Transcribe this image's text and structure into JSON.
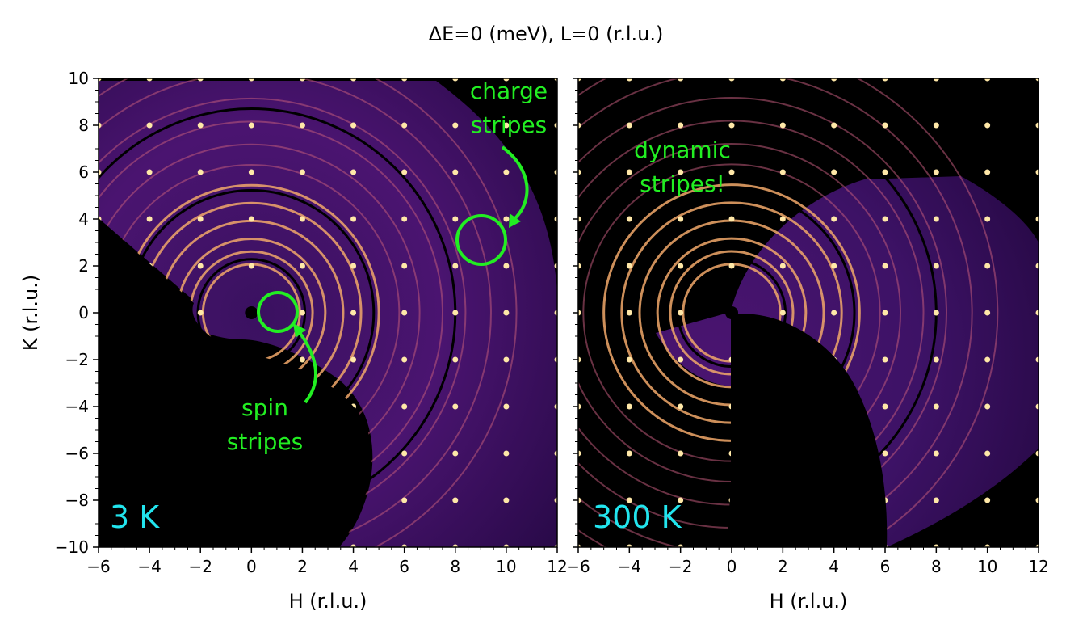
{
  "chart_data": {
    "type": "heatmap",
    "title": "ΔE=0 (meV),    L=0 (r.l.u.)",
    "colormap": "magma",
    "panels": [
      {
        "label": "3 K",
        "xlabel": "H (r.l.u.)",
        "ylabel": "K (r.l.u.)",
        "xlim": [
          -6,
          12
        ],
        "ylim": [
          -10,
          10
        ],
        "xticks": [
          "−6",
          "−4",
          "−2",
          "0",
          "2",
          "4",
          "6",
          "8",
          "10",
          "12"
        ],
        "yticks": [
          "10",
          "8",
          "6",
          "4",
          "2",
          "0",
          "−2",
          "−4",
          "−6",
          "−8",
          "−10"
        ],
        "annotations": [
          {
            "text_lines": [
              "charge",
              "stripes"
            ],
            "target": [
              9,
              3
            ]
          },
          {
            "text_lines": [
              "spin",
              "stripes"
            ],
            "target": [
              1,
              0
            ]
          }
        ]
      },
      {
        "label": "300 K",
        "xlabel": "H (r.l.u.)",
        "xlim": [
          -6,
          12
        ],
        "ylim": [
          -10,
          10
        ],
        "xticks": [
          "−6",
          "−4",
          "−2",
          "0",
          "2",
          "4",
          "6",
          "8",
          "10",
          "12"
        ],
        "annotations": [
          {
            "text_lines": [
              "dynamic",
              "stripes!"
            ]
          }
        ]
      }
    ]
  }
}
